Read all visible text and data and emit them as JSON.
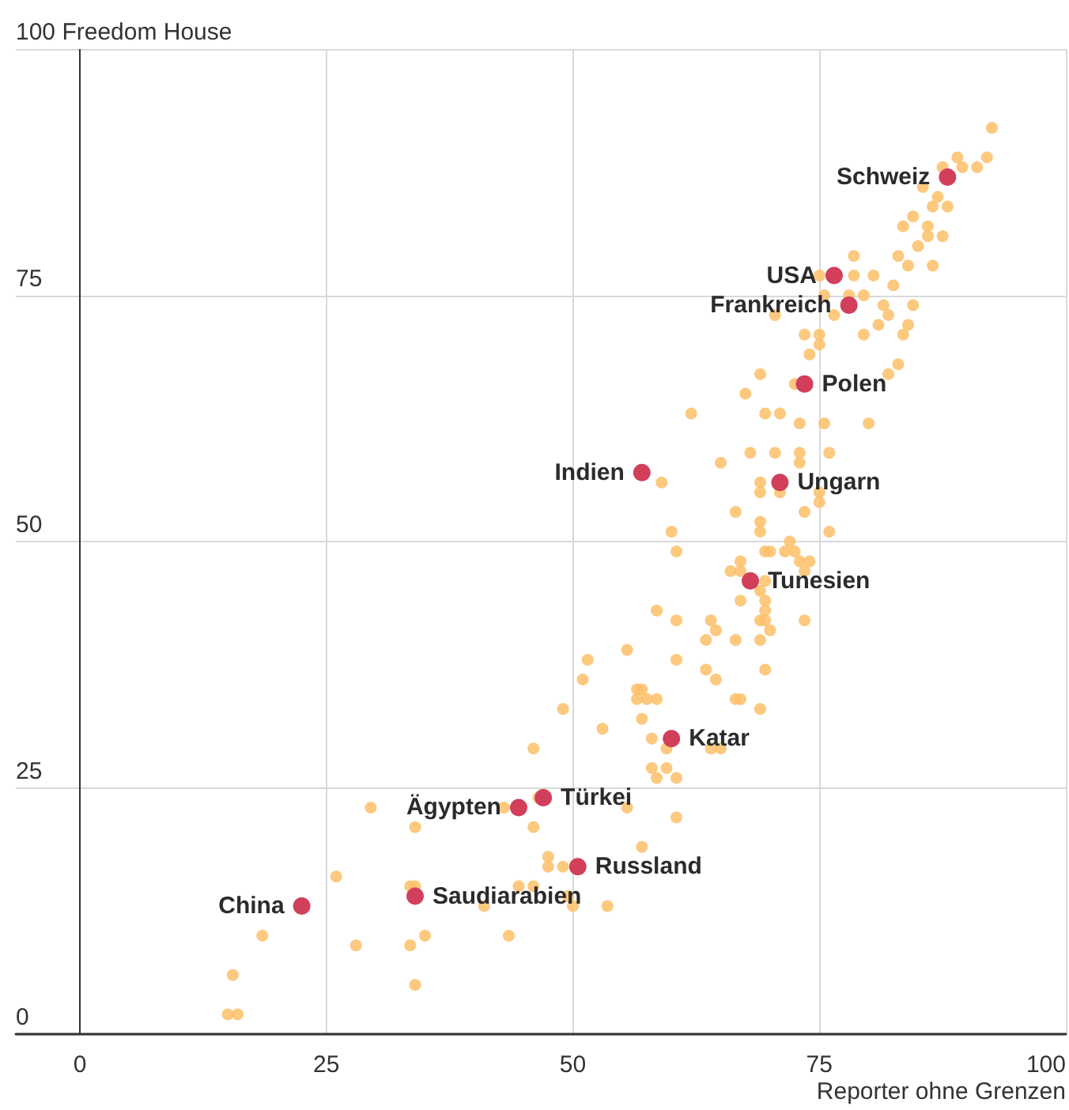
{
  "chart_data": {
    "type": "scatter",
    "xlabel": "Reporter ohne Grenzen",
    "ylabel": "Freedom House",
    "xlim": [
      -6.5,
      100
    ],
    "ylim": [
      0,
      100
    ],
    "xticks": [
      0,
      25,
      50,
      75,
      100
    ],
    "yticks": [
      0,
      25,
      50,
      75,
      100
    ],
    "grid": true,
    "marker": "circle",
    "series": [
      {
        "color": "#fdbf68",
        "x": [
          29.5,
          43,
          46.5,
          55.5,
          58,
          58.5,
          34,
          46,
          57,
          47.5,
          47.5,
          49,
          26,
          33.5,
          34,
          44.5,
          46,
          49.5,
          50,
          53.5,
          41,
          18.5,
          28,
          33.5,
          35,
          43.5,
          15.5,
          34,
          15,
          16,
          60.5,
          59,
          65,
          68,
          70.5,
          69,
          69,
          71,
          66.5,
          69,
          69,
          60,
          60.5,
          69.5,
          70,
          71.5,
          72.5,
          72,
          67,
          66,
          67,
          69.5,
          69,
          69.5,
          67,
          69.5,
          69,
          69.5,
          70,
          69,
          66.5,
          63.5,
          64.5,
          64,
          60.5,
          58.5,
          55.5,
          51.5,
          60.5,
          69.5,
          63.5,
          64.5,
          51,
          56.5,
          57,
          56.5,
          57.5,
          58.5,
          66.5,
          67,
          69,
          49,
          57,
          53,
          58,
          59.5,
          64,
          65,
          46,
          59.5,
          60.5,
          70.5,
          76.5,
          81,
          82,
          84,
          73.5,
          75,
          75,
          79.5,
          83.5,
          74,
          83,
          82,
          69,
          72.5,
          67.5,
          62,
          69.5,
          71,
          73,
          75.5,
          80,
          73,
          73,
          76,
          75,
          75,
          73.5,
          76,
          73,
          74,
          73.5,
          73.5,
          92.5,
          89,
          92,
          87.5,
          89.5,
          91,
          85.5,
          87,
          86.5,
          88,
          84.5,
          83.5,
          86,
          86,
          87.5,
          85,
          83,
          78.5,
          84,
          86.5,
          75,
          78.5,
          80.5,
          82.5,
          75.5,
          78,
          79.5,
          81.5,
          84.5
        ],
        "values": [
          23,
          23,
          24,
          23,
          27,
          26,
          21,
          21,
          19,
          18,
          17,
          17,
          16,
          15,
          15,
          15,
          15,
          14,
          13,
          13,
          13,
          10,
          9,
          9,
          10,
          10,
          6,
          5,
          2,
          2,
          22,
          56,
          58,
          59,
          59,
          56,
          55,
          55,
          53,
          52,
          51,
          51,
          49,
          49,
          49,
          49,
          49,
          50,
          48,
          47,
          47,
          46,
          45,
          44,
          44,
          43,
          42,
          42,
          41,
          40,
          40,
          40,
          41,
          42,
          42,
          43,
          39,
          38,
          38,
          37,
          37,
          36,
          36,
          35,
          35,
          34,
          34,
          34,
          34,
          34,
          33,
          33,
          32,
          31,
          30,
          29,
          29,
          29,
          29,
          27,
          26,
          73,
          73,
          72,
          73,
          72,
          71,
          71,
          70,
          71,
          71,
          69,
          68,
          67,
          67,
          66,
          65,
          63,
          63,
          63,
          62,
          62,
          62,
          59,
          58,
          59,
          55,
          54,
          53,
          51,
          48,
          48,
          47,
          42,
          92,
          89,
          89,
          88,
          88,
          88,
          86,
          85,
          84,
          84,
          83,
          82,
          82,
          81,
          81,
          80,
          79,
          79,
          78,
          78,
          77,
          77,
          77,
          76,
          75,
          75,
          75,
          74,
          74
        ]
      },
      {
        "color": "#d13f5b",
        "x": [
          88,
          76.5,
          78,
          73.5,
          57,
          71,
          68,
          60,
          47,
          44.5,
          50.5,
          34,
          22.5
        ],
        "values": [
          87,
          77,
          74,
          66,
          57,
          56,
          46,
          30,
          24,
          23,
          17,
          14,
          13
        ]
      }
    ],
    "annotations": [
      {
        "text": "Schweiz",
        "x": 88,
        "y": 87
      },
      {
        "text": "USA",
        "x": 76.5,
        "y": 77
      },
      {
        "text": "Frankreich",
        "x": 78,
        "y": 74
      },
      {
        "text": "Polen",
        "x": 73.5,
        "y": 66
      },
      {
        "text": "Indien",
        "x": 57,
        "y": 57
      },
      {
        "text": "Ungarn",
        "x": 71,
        "y": 56
      },
      {
        "text": "Tunesien",
        "x": 68,
        "y": 46
      },
      {
        "text": "Katar",
        "x": 60,
        "y": 30
      },
      {
        "text": "Türkei",
        "x": 47,
        "y": 24
      },
      {
        "text": "Ägypten",
        "x": 44.5,
        "y": 23
      },
      {
        "text": "Russland",
        "x": 50.5,
        "y": 17
      },
      {
        "text": "Saudiarabien",
        "x": 34,
        "y": 14
      },
      {
        "text": "China",
        "x": 22.5,
        "y": 13
      }
    ]
  }
}
